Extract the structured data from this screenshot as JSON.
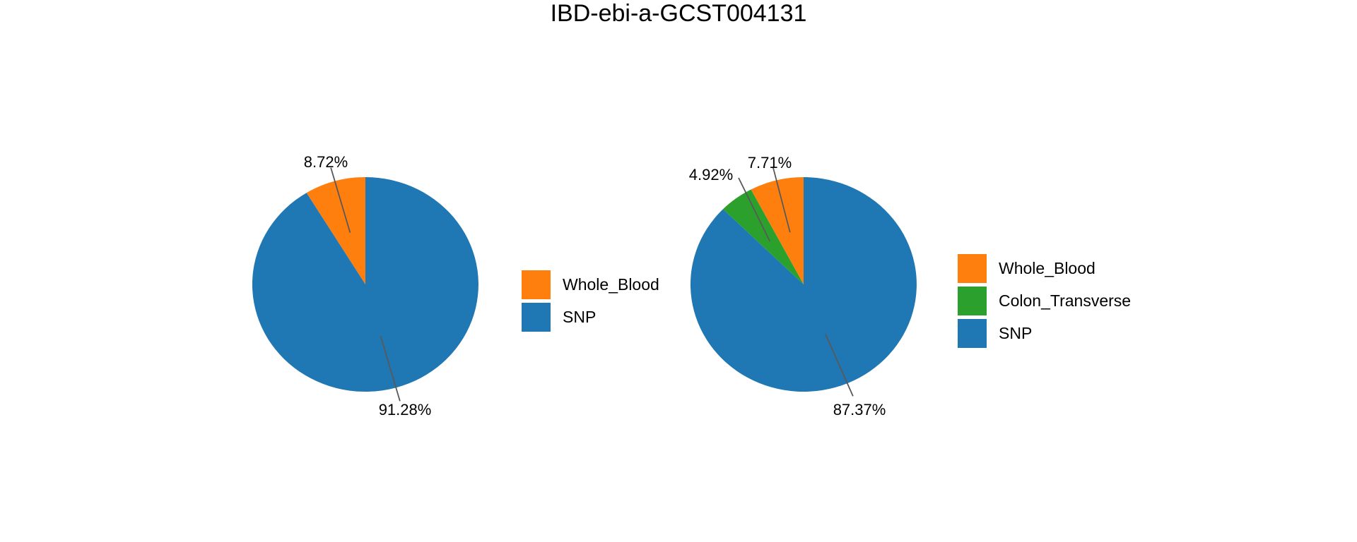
{
  "title": "IBD-ebi-a-GCST004131",
  "style": {
    "background": "#ffffff",
    "text_color": "#000000",
    "leader_line_color": "#595959",
    "palette": {
      "Whole_Blood": "#ff7f0e",
      "Colon_Transverse": "#2ca02c",
      "SNP": "#1f77b4"
    }
  },
  "chart_data": [
    {
      "type": "pie",
      "start_angle_deg": 90,
      "direction": "counterclockwise",
      "legend_position": "right",
      "legend": [
        "Whole_Blood",
        "SNP"
      ],
      "slices": [
        {
          "label": "Whole_Blood",
          "value": 8.72,
          "percent_label": "8.72%",
          "color": "#ff7f0e"
        },
        {
          "label": "SNP",
          "value": 91.28,
          "percent_label": "91.28%",
          "color": "#1f77b4"
        }
      ]
    },
    {
      "type": "pie",
      "start_angle_deg": 90,
      "direction": "counterclockwise",
      "legend_position": "right",
      "legend": [
        "Whole_Blood",
        "Colon_Transverse",
        "SNP"
      ],
      "slices": [
        {
          "label": "Whole_Blood",
          "value": 7.71,
          "percent_label": "7.71%",
          "color": "#ff7f0e"
        },
        {
          "label": "Colon_Transverse",
          "value": 4.92,
          "percent_label": "4.92%",
          "color": "#2ca02c"
        },
        {
          "label": "SNP",
          "value": 87.37,
          "percent_label": "87.37%",
          "color": "#1f77b4"
        }
      ]
    }
  ]
}
